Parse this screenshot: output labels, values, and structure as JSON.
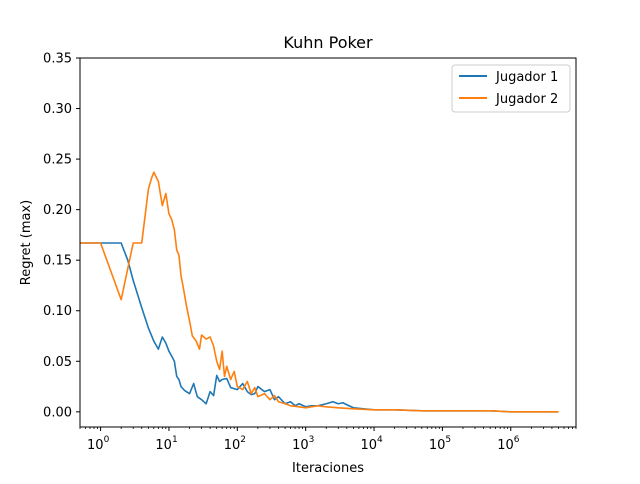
{
  "colors": {
    "series1": "#1f77b4",
    "series2": "#ff7f0e"
  },
  "chart_data": {
    "type": "line",
    "title": "Kuhn Poker",
    "xlabel": "Iteraciones",
    "ylabel": "Regret (max)",
    "xscale": "log",
    "xlim": [
      0.5,
      9000000
    ],
    "ylim": [
      -0.015,
      0.35
    ],
    "yticks": [
      "0.00",
      "0.05",
      "0.10",
      "0.15",
      "0.20",
      "0.25",
      "0.30",
      "0.35"
    ],
    "xticks": [
      {
        "base": "10",
        "exp": "0"
      },
      {
        "base": "10",
        "exp": "1"
      },
      {
        "base": "10",
        "exp": "2"
      },
      {
        "base": "10",
        "exp": "3"
      },
      {
        "base": "10",
        "exp": "4"
      },
      {
        "base": "10",
        "exp": "5"
      },
      {
        "base": "10",
        "exp": "6"
      }
    ],
    "grid": false,
    "legend_position": "top-right",
    "series": [
      {
        "name": "Jugador 1",
        "color": "#1f77b4",
        "x": [
          0.5,
          1,
          1.5,
          2,
          2.5,
          3,
          4,
          5,
          6,
          7,
          8,
          9,
          10,
          11,
          12,
          13,
          14,
          15,
          17,
          20,
          23,
          26,
          30,
          35,
          40,
          45,
          50,
          55,
          60,
          70,
          80,
          100,
          120,
          140,
          160,
          180,
          200,
          250,
          300,
          350,
          400,
          500,
          600,
          700,
          800,
          1000,
          1200,
          1500,
          2000,
          2500,
          3000,
          3500,
          4000,
          5000,
          7000,
          10000,
          20000,
          50000,
          100000,
          500000,
          1000000,
          5000000
        ],
        "y": [
          0.167,
          0.167,
          0.167,
          0.167,
          0.15,
          0.13,
          0.103,
          0.083,
          0.07,
          0.062,
          0.074,
          0.068,
          0.06,
          0.055,
          0.05,
          0.035,
          0.032,
          0.025,
          0.021,
          0.018,
          0.028,
          0.015,
          0.012,
          0.008,
          0.02,
          0.016,
          0.036,
          0.03,
          0.032,
          0.033,
          0.024,
          0.022,
          0.028,
          0.02,
          0.017,
          0.018,
          0.025,
          0.02,
          0.022,
          0.012,
          0.015,
          0.008,
          0.01,
          0.006,
          0.008,
          0.005,
          0.006,
          0.006,
          0.008,
          0.01,
          0.008,
          0.009,
          0.007,
          0.004,
          0.003,
          0.002,
          0.002,
          0.001,
          0.001,
          0.001,
          0.0,
          0.0
        ]
      },
      {
        "name": "Jugador 2",
        "color": "#ff7f0e",
        "x": [
          0.5,
          1,
          2,
          3,
          4,
          5,
          5.5,
          6,
          7,
          8,
          9,
          10,
          11,
          12,
          13,
          14,
          15,
          16,
          17,
          18,
          20,
          22,
          25,
          28,
          30,
          35,
          40,
          45,
          50,
          55,
          60,
          65,
          70,
          80,
          90,
          100,
          120,
          140,
          160,
          180,
          200,
          250,
          300,
          350,
          400,
          500,
          600,
          800,
          1000,
          1500,
          2000,
          3000,
          5000,
          10000,
          20000,
          50000,
          100000,
          500000,
          1000000,
          5000000
        ],
        "y": [
          0.167,
          0.167,
          0.111,
          0.167,
          0.167,
          0.22,
          0.23,
          0.237,
          0.228,
          0.204,
          0.216,
          0.196,
          0.19,
          0.18,
          0.16,
          0.155,
          0.135,
          0.125,
          0.115,
          0.105,
          0.09,
          0.075,
          0.07,
          0.062,
          0.076,
          0.072,
          0.074,
          0.065,
          0.05,
          0.042,
          0.06,
          0.035,
          0.045,
          0.032,
          0.04,
          0.025,
          0.022,
          0.03,
          0.018,
          0.024,
          0.015,
          0.018,
          0.012,
          0.016,
          0.01,
          0.008,
          0.006,
          0.005,
          0.004,
          0.006,
          0.005,
          0.004,
          0.003,
          0.002,
          0.002,
          0.001,
          0.001,
          0.001,
          0.0,
          0.0
        ]
      }
    ]
  }
}
